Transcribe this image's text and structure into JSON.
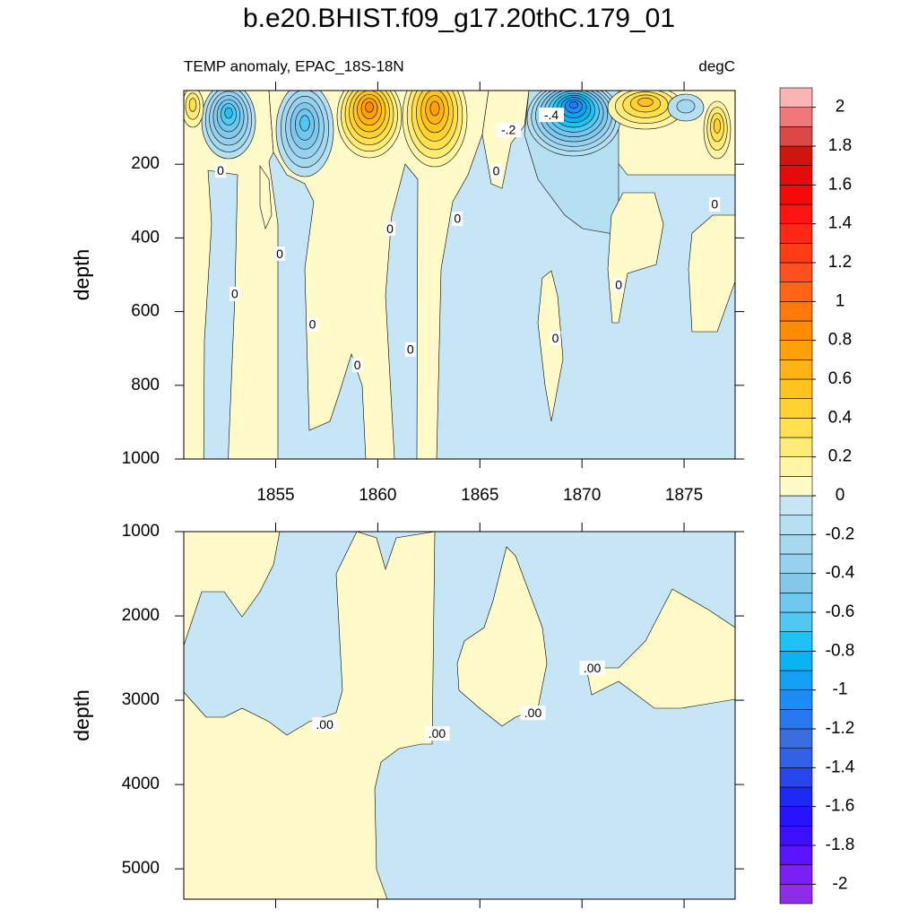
{
  "chart_data": [
    {
      "type": "contour",
      "title": "b.e20.BHIST.f09_g17.20thC.179_01",
      "subtitle": "TEMP anomaly, EPAC_18S-18N",
      "units": "degC",
      "xlim": [
        1850.5,
        1877.5
      ],
      "xticks": [
        1855,
        1860,
        1865,
        1870,
        1875
      ],
      "ylim": [
        0,
        1000
      ],
      "yticks": [
        200,
        400,
        600,
        800,
        1000
      ],
      "y_reversed": true,
      "ylabel": "depth",
      "contour_labels": [
        {
          "x": 1852.3,
          "depth": 217,
          "label": "0"
        },
        {
          "x": 1855.2,
          "depth": 443,
          "label": "0"
        },
        {
          "x": 1853.0,
          "depth": 552,
          "label": "0"
        },
        {
          "x": 1856.8,
          "depth": 635,
          "label": "0"
        },
        {
          "x": 1859.0,
          "depth": 745,
          "label": "0"
        },
        {
          "x": 1860.6,
          "depth": 375,
          "label": "0"
        },
        {
          "x": 1861.6,
          "depth": 703,
          "label": "0"
        },
        {
          "x": 1863.9,
          "depth": 348,
          "label": "0"
        },
        {
          "x": 1865.8,
          "depth": 219,
          "label": "0"
        },
        {
          "x": 1866.4,
          "depth": 107,
          "label": "-.2"
        },
        {
          "x": 1868.5,
          "depth": 66,
          "label": "-.4"
        },
        {
          "x": 1868.7,
          "depth": 672,
          "label": "0"
        },
        {
          "x": 1871.8,
          "depth": 528,
          "label": "0"
        },
        {
          "x": 1876.5,
          "depth": 309,
          "label": "0"
        }
      ]
    },
    {
      "type": "contour",
      "xlim": [
        1850.5,
        1877.5
      ],
      "xticks": [
        1855,
        1860,
        1865,
        1870,
        1875
      ],
      "ylim": [
        1000,
        5360
      ],
      "yticks": [
        1000,
        2000,
        3000,
        4000,
        5000
      ],
      "y_reversed": true,
      "ylabel": "depth",
      "contour_labels": [
        {
          "x": 1857.4,
          "depth": 3288,
          "label": ".00"
        },
        {
          "x": 1862.9,
          "depth": 3394,
          "label": ".00"
        },
        {
          "x": 1867.6,
          "depth": 3149,
          "label": ".00"
        },
        {
          "x": 1870.5,
          "depth": 2617,
          "label": ".00"
        }
      ]
    },
    {
      "type": "colorbar",
      "levels": [
        -2,
        -1.9,
        -1.8,
        -1.7,
        -1.6,
        -1.5,
        -1.4,
        -1.3,
        -1.2,
        -1.1,
        -1,
        -0.9,
        -0.8,
        -0.7,
        -0.6,
        -0.5,
        -0.4,
        -0.3,
        -0.2,
        -0.1,
        0,
        0.1,
        0.2,
        0.3,
        0.4,
        0.5,
        0.6,
        0.7,
        0.8,
        0.9,
        1,
        1.1,
        1.2,
        1.3,
        1.4,
        1.5,
        1.6,
        1.7,
        1.8,
        1.9,
        2
      ],
      "colors": [
        "#8f2de6",
        "#7a1ff5",
        "#5a14ff",
        "#3c0fff",
        "#2814ff",
        "#1e28f5",
        "#2846eb",
        "#3260e6",
        "#3a6ee0",
        "#2878f0",
        "#1e8cf5",
        "#14a0f5",
        "#0ab4f0",
        "#1ec3f5",
        "#50c8f0",
        "#6ec8f0",
        "#82c8eb",
        "#96d2ef",
        "#a5d8ef",
        "#b4e0f2",
        "#c6e6f5",
        "#fffac8",
        "#fff5a5",
        "#ffeb78",
        "#ffe150",
        "#ffd232",
        "#ffc31e",
        "#ffb414",
        "#ffa00a",
        "#ff8c00",
        "#ff780a",
        "#ff6414",
        "#ff501e",
        "#ff3c14",
        "#ff2814",
        "#ff1414",
        "#f50a0a",
        "#e60a0a",
        "#d2140f",
        "#dc4646",
        "#f07878",
        "#fab4b4"
      ],
      "ticks": [
        2,
        1.8,
        1.6,
        1.4,
        1.2,
        1,
        0.8,
        0.6,
        0.4,
        0.2,
        0,
        -0.2,
        -0.4,
        -0.6,
        -0.8,
        -1,
        -1.2,
        -1.4,
        -1.6,
        -1.8,
        -2
      ]
    }
  ]
}
